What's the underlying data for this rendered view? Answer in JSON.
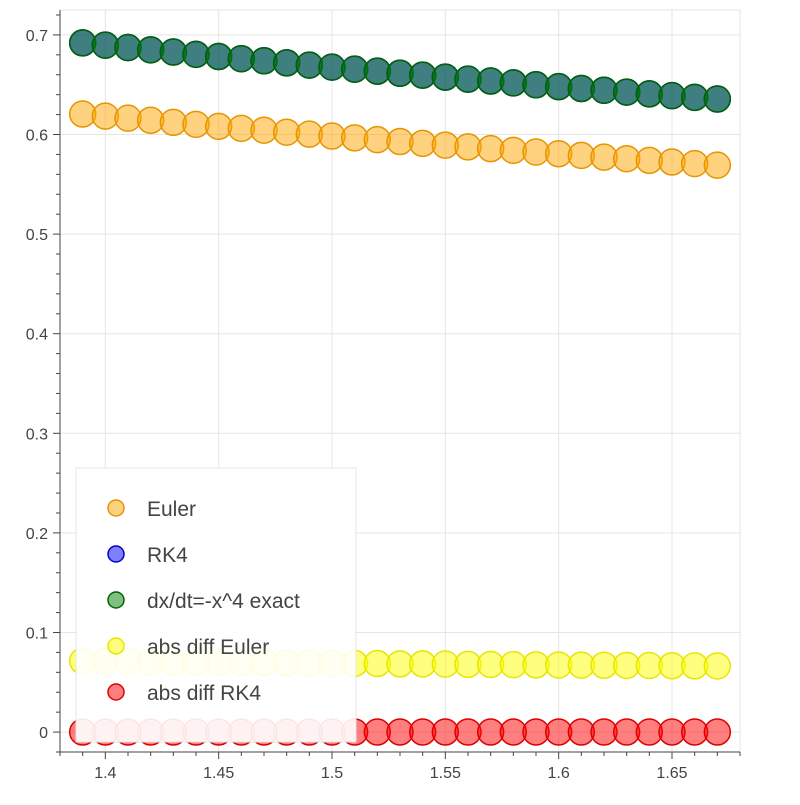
{
  "chart_data": {
    "type": "scatter",
    "title": "",
    "xlabel": "",
    "ylabel": "",
    "xlim": [
      1.38,
      1.68
    ],
    "ylim": [
      -0.02,
      0.725
    ],
    "x_ticks": [
      1.4,
      1.45,
      1.5,
      1.55,
      1.6,
      1.65
    ],
    "x_tick_labels": [
      "1.4",
      "1.45",
      "1.5",
      "1.55",
      "1.6",
      "1.65"
    ],
    "y_ticks": [
      0,
      0.1,
      0.2,
      0.3,
      0.4,
      0.5,
      0.6,
      0.7
    ],
    "y_tick_labels": [
      "0",
      "0.1",
      "0.2",
      "0.3",
      "0.4",
      "0.5",
      "0.6",
      "0.7"
    ],
    "grid": true,
    "legend_position": "bottom-left",
    "x": [
      1.39,
      1.4,
      1.41,
      1.42,
      1.43,
      1.44,
      1.45,
      1.46,
      1.47,
      1.48,
      1.49,
      1.5,
      1.51,
      1.52,
      1.53,
      1.54,
      1.55,
      1.56,
      1.57,
      1.58,
      1.59,
      1.6,
      1.61,
      1.62,
      1.63,
      1.64,
      1.65,
      1.66,
      1.67
    ],
    "series": [
      {
        "name": "Euler",
        "fill": "#ffa500",
        "stroke": "#e69500",
        "fill_opacity": 0.5,
        "values": [
          0.6206,
          0.6185,
          0.6164,
          0.6143,
          0.6122,
          0.6102,
          0.6082,
          0.6062,
          0.6043,
          0.6023,
          0.6004,
          0.5985,
          0.5966,
          0.5948,
          0.593,
          0.5911,
          0.5893,
          0.5876,
          0.5858,
          0.5841,
          0.5824,
          0.5807,
          0.579,
          0.5773,
          0.5757,
          0.574,
          0.5724,
          0.5708,
          0.5692
        ]
      },
      {
        "name": "RK4",
        "fill": "#0000ff",
        "stroke": "#0000cc",
        "fill_opacity": 0.5,
        "values": [
          0.692,
          0.6897,
          0.6873,
          0.685,
          0.6828,
          0.6805,
          0.6783,
          0.6761,
          0.674,
          0.6719,
          0.6697,
          0.6677,
          0.6656,
          0.6636,
          0.6615,
          0.6596,
          0.6576,
          0.6556,
          0.6537,
          0.6518,
          0.6499,
          0.6481,
          0.6462,
          0.6444,
          0.6426,
          0.6408,
          0.639,
          0.6373,
          0.6356
        ]
      },
      {
        "name": "dx/dt=-x^4 exact",
        "fill": "#008000",
        "stroke": "#006400",
        "fill_opacity": 0.5,
        "values": [
          0.692,
          0.6897,
          0.6873,
          0.685,
          0.6828,
          0.6805,
          0.6783,
          0.6761,
          0.674,
          0.6719,
          0.6697,
          0.6677,
          0.6656,
          0.6636,
          0.6615,
          0.6596,
          0.6576,
          0.6556,
          0.6537,
          0.6518,
          0.6499,
          0.6481,
          0.6462,
          0.6444,
          0.6426,
          0.6408,
          0.639,
          0.6373,
          0.6356
        ]
      },
      {
        "name": "abs diff Euler",
        "fill": "#ffff00",
        "stroke": "#e6e600",
        "fill_opacity": 0.5,
        "values": [
          0.0714,
          0.0712,
          0.0709,
          0.0707,
          0.0706,
          0.0703,
          0.0701,
          0.0699,
          0.0697,
          0.0696,
          0.0693,
          0.0692,
          0.069,
          0.0688,
          0.0685,
          0.0685,
          0.0683,
          0.068,
          0.0679,
          0.0677,
          0.0675,
          0.0674,
          0.0672,
          0.0671,
          0.0669,
          0.0668,
          0.0666,
          0.0665,
          0.0664
        ]
      },
      {
        "name": "abs diff RK4",
        "fill": "#ff0000",
        "stroke": "#e00000",
        "fill_opacity": 0.5,
        "values": [
          0.0001,
          0.0001,
          0.0001,
          0.0001,
          0.0001,
          0.0001,
          0.0001,
          0.0001,
          0.0001,
          0.0001,
          0.0001,
          0.0001,
          0.0001,
          0.0001,
          0.0001,
          0.0001,
          0.0001,
          0.0001,
          0.0001,
          0.0001,
          0.0001,
          0.0001,
          0.0001,
          0.0001,
          0.0001,
          0.0001,
          0.0001,
          0.0001,
          0.0001
        ]
      }
    ],
    "legend": {
      "entries": [
        "Euler",
        "RK4",
        "dx/dt=-x^4 exact",
        "abs diff Euler",
        "abs diff RK4"
      ]
    }
  }
}
